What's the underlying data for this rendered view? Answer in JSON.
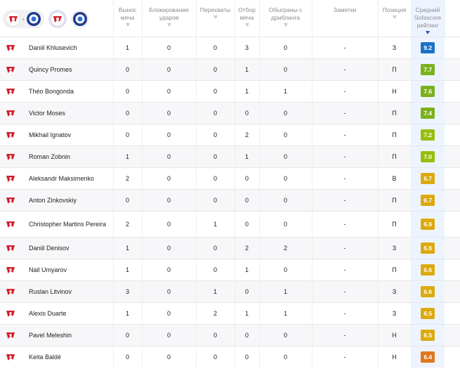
{
  "header": {
    "team_filters": [
      {
        "name": "spartak-icon"
      },
      {
        "name": "orenburg-icon"
      }
    ],
    "plus_sign": "+",
    "columns": [
      {
        "key": "clearances",
        "label": "Вынос мяча"
      },
      {
        "key": "blocked_shots",
        "label": "Блокирование ударов"
      },
      {
        "key": "interceptions",
        "label": "Перехваты"
      },
      {
        "key": "tackles",
        "label": "Отбор мяча"
      },
      {
        "key": "dribbled_past",
        "label": "Обыграны с дриблинга"
      },
      {
        "key": "notes",
        "label": "Заметки"
      },
      {
        "key": "position",
        "label": "Позиция"
      },
      {
        "key": "rating",
        "label": "Средний Sofascore рейтинг"
      }
    ],
    "sorted_column": "rating"
  },
  "colors": {
    "rating_dark_green": "#0a9b56",
    "rating_blue": "#1972c7",
    "rating_green": "#7bb11b",
    "rating_lime": "#98bd10",
    "rating_yellow": "#dbaa0e",
    "rating_orange": "#e0761f",
    "spartak_red": "#d3202c"
  },
  "players": [
    {
      "name": "Daniil Khlusevich",
      "clearances": "1",
      "blocked_shots": "0",
      "interceptions": "0",
      "tackles": "3",
      "dribbled_past": "0",
      "notes": "-",
      "position": "З",
      "rating": "9.2",
      "rating_color": "#1972c7"
    },
    {
      "name": "Quincy Promes",
      "clearances": "0",
      "blocked_shots": "0",
      "interceptions": "0",
      "tackles": "1",
      "dribbled_past": "0",
      "notes": "-",
      "position": "П",
      "rating": "7.7",
      "rating_color": "#7bb11b"
    },
    {
      "name": "Théo Bongonda",
      "clearances": "0",
      "blocked_shots": "0",
      "interceptions": "0",
      "tackles": "1",
      "dribbled_past": "1",
      "notes": "-",
      "position": "Н",
      "rating": "7.6",
      "rating_color": "#7bb11b"
    },
    {
      "name": "Victor Moses",
      "clearances": "0",
      "blocked_shots": "0",
      "interceptions": "0",
      "tackles": "0",
      "dribbled_past": "0",
      "notes": "-",
      "position": "П",
      "rating": "7.4",
      "rating_color": "#7bb11b"
    },
    {
      "name": "Mikhail Ignatov",
      "clearances": "0",
      "blocked_shots": "0",
      "interceptions": "0",
      "tackles": "2",
      "dribbled_past": "0",
      "notes": "-",
      "position": "П",
      "rating": "7.2",
      "rating_color": "#98bd10"
    },
    {
      "name": "Roman Zobnin",
      "clearances": "1",
      "blocked_shots": "0",
      "interceptions": "0",
      "tackles": "1",
      "dribbled_past": "0",
      "notes": "-",
      "position": "П",
      "rating": "7.0",
      "rating_color": "#98bd10"
    },
    {
      "name": "Aleksandr Maksimenko",
      "clearances": "2",
      "blocked_shots": "0",
      "interceptions": "0",
      "tackles": "0",
      "dribbled_past": "0",
      "notes": "-",
      "position": "В",
      "rating": "6.7",
      "rating_color": "#dbaa0e"
    },
    {
      "name": "Anton Zinkovskiy",
      "clearances": "0",
      "blocked_shots": "0",
      "interceptions": "0",
      "tackles": "0",
      "dribbled_past": "0",
      "notes": "-",
      "position": "П",
      "rating": "6.7",
      "rating_color": "#dbaa0e"
    },
    {
      "name": "Christopher Martins Pereira",
      "clearances": "2",
      "blocked_shots": "0",
      "interceptions": "1",
      "tackles": "0",
      "dribbled_past": "0",
      "notes": "-",
      "position": "П",
      "rating": "6.6",
      "rating_color": "#dbaa0e"
    },
    {
      "name": "Daniil Denisov",
      "clearances": "1",
      "blocked_shots": "0",
      "interceptions": "0",
      "tackles": "2",
      "dribbled_past": "2",
      "notes": "-",
      "position": "З",
      "rating": "6.6",
      "rating_color": "#dbaa0e"
    },
    {
      "name": "Nail Umyarov",
      "clearances": "1",
      "blocked_shots": "0",
      "interceptions": "0",
      "tackles": "1",
      "dribbled_past": "0",
      "notes": "-",
      "position": "П",
      "rating": "6.6",
      "rating_color": "#dbaa0e"
    },
    {
      "name": "Ruslan Litvinov",
      "clearances": "3",
      "blocked_shots": "0",
      "interceptions": "1",
      "tackles": "0",
      "dribbled_past": "1",
      "notes": "-",
      "position": "З",
      "rating": "6.6",
      "rating_color": "#dbaa0e"
    },
    {
      "name": "Alexis Duarte",
      "clearances": "1",
      "blocked_shots": "0",
      "interceptions": "2",
      "tackles": "1",
      "dribbled_past": "1",
      "notes": "-",
      "position": "З",
      "rating": "6.5",
      "rating_color": "#dbaa0e"
    },
    {
      "name": "Pavel Meleshin",
      "clearances": "0",
      "blocked_shots": "0",
      "interceptions": "0",
      "tackles": "0",
      "dribbled_past": "0",
      "notes": "-",
      "position": "Н",
      "rating": "6.5",
      "rating_color": "#dbaa0e"
    },
    {
      "name": "Keita Baldé",
      "clearances": "0",
      "blocked_shots": "0",
      "interceptions": "0",
      "tackles": "0",
      "dribbled_past": "0",
      "notes": "-",
      "position": "Н",
      "rating": "6.4",
      "rating_color": "#e0761f"
    }
  ]
}
